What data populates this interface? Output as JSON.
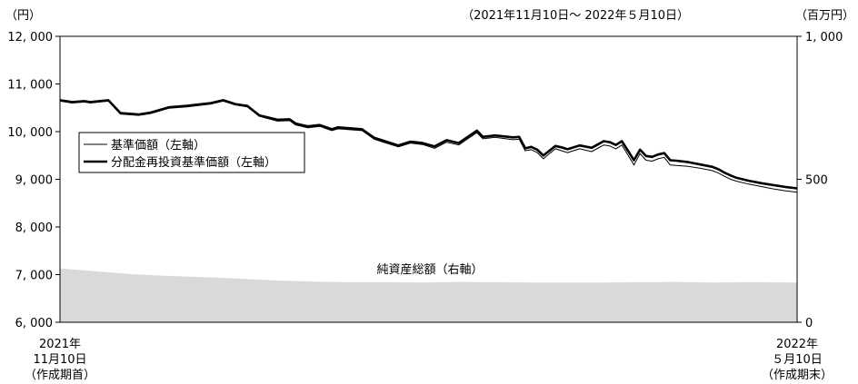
{
  "chart_data": {
    "type": "line",
    "period": "（2021年11月10日～ 2022年５月10日）",
    "y_left": {
      "unit": "（円）",
      "ticks": [
        "12, 000",
        "11, 000",
        "10, 000",
        "9, 000",
        "8, 000",
        "7, 000",
        "6, 000"
      ],
      "range": [
        6000,
        12000
      ]
    },
    "y_right": {
      "unit": "（百万円）",
      "ticks": [
        "1, 000",
        "500",
        "0"
      ],
      "range": [
        0,
        1000
      ]
    },
    "x_start_label": [
      "2021年",
      "11月10日",
      "（作成期首）"
    ],
    "x_end_label": [
      "2022年",
      "５月10日",
      "（作成期末）"
    ],
    "x_range": [
      0,
      122
    ],
    "grid": false,
    "legend_position": "left",
    "annotation": "純資産総額（右軸）",
    "series": [
      {
        "name": "基準価額（左軸）",
        "axis": "left",
        "style": "thin",
        "x": [
          0,
          2,
          4,
          5,
          8,
          10,
          13,
          15,
          18,
          21,
          25,
          27,
          29,
          31,
          33,
          36,
          38,
          39,
          41,
          43,
          45,
          46,
          48,
          50,
          52,
          54,
          56,
          58,
          60,
          62,
          64,
          66,
          69,
          70,
          72,
          75,
          76,
          77,
          78,
          79,
          80,
          81,
          82,
          83,
          84,
          86,
          88,
          90,
          91,
          92,
          93,
          95,
          96,
          97,
          98,
          99,
          100,
          101,
          102,
          104,
          106,
          108,
          109,
          110,
          111,
          112,
          114,
          116,
          118,
          120,
          122
        ],
        "values": [
          10640,
          10600,
          10620,
          10600,
          10640,
          10370,
          10340,
          10380,
          10490,
          10520,
          10580,
          10640,
          10560,
          10520,
          10320,
          10220,
          10230,
          10140,
          10080,
          10110,
          10020,
          10060,
          10040,
          10020,
          9840,
          9760,
          9680,
          9760,
          9730,
          9650,
          9780,
          9720,
          9980,
          9850,
          9880,
          9830,
          9840,
          9600,
          9620,
          9560,
          9430,
          9540,
          9640,
          9600,
          9560,
          9640,
          9580,
          9720,
          9700,
          9640,
          9720,
          9300,
          9540,
          9400,
          9380,
          9430,
          9460,
          9300,
          9290,
          9270,
          9230,
          9180,
          9130,
          9060,
          9000,
          8960,
          8900,
          8850,
          8800,
          8760,
          8730
        ]
      },
      {
        "name": "分配金再投資基準価額（左軸）",
        "axis": "left",
        "style": "thick",
        "x": [
          0,
          2,
          4,
          5,
          8,
          10,
          13,
          15,
          18,
          21,
          25,
          27,
          29,
          31,
          33,
          36,
          38,
          39,
          41,
          43,
          45,
          46,
          48,
          50,
          52,
          54,
          56,
          58,
          60,
          62,
          64,
          66,
          69,
          70,
          72,
          75,
          76,
          77,
          78,
          79,
          80,
          81,
          82,
          83,
          84,
          86,
          88,
          90,
          91,
          92,
          93,
          95,
          96,
          97,
          98,
          99,
          100,
          101,
          102,
          104,
          106,
          108,
          109,
          110,
          111,
          112,
          114,
          116,
          118,
          120,
          122
        ],
        "values": [
          10660,
          10620,
          10640,
          10620,
          10660,
          10390,
          10360,
          10400,
          10510,
          10540,
          10600,
          10660,
          10580,
          10540,
          10340,
          10250,
          10260,
          10170,
          10110,
          10140,
          10050,
          10090,
          10070,
          10050,
          9870,
          9790,
          9710,
          9790,
          9760,
          9690,
          9820,
          9760,
          10020,
          9890,
          9920,
          9880,
          9890,
          9650,
          9680,
          9620,
          9500,
          9600,
          9700,
          9670,
          9630,
          9710,
          9660,
          9800,
          9780,
          9720,
          9800,
          9400,
          9620,
          9490,
          9470,
          9520,
          9550,
          9400,
          9390,
          9360,
          9310,
          9260,
          9210,
          9140,
          9080,
          9030,
          8970,
          8920,
          8880,
          8840,
          8810
        ]
      },
      {
        "name": "純資産総額（右軸）",
        "axis": "right",
        "style": "area",
        "x": [
          0,
          6,
          12,
          18,
          24,
          30,
          36,
          42,
          48,
          54,
          60,
          66,
          72,
          78,
          84,
          90,
          96,
          102,
          108,
          114,
          122
        ],
        "values": [
          188,
          178,
          168,
          162,
          158,
          152,
          146,
          142,
          140,
          140,
          139,
          141,
          140,
          139,
          139,
          139,
          140,
          141,
          139,
          140,
          139
        ]
      }
    ]
  }
}
